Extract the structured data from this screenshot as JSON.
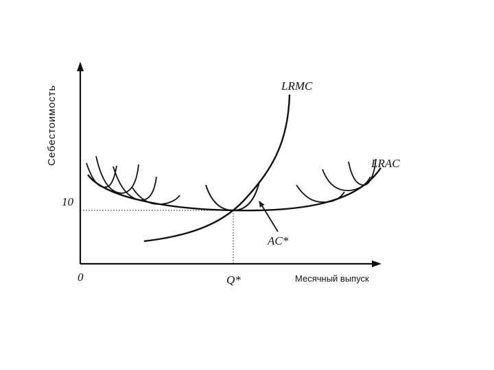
{
  "diagram": {
    "ylabel": "Себестоимость",
    "xlabel": "Месячный выпуск",
    "origin_label": "0",
    "y_tick_label": "10",
    "x_tick_label": "Q*",
    "curve_labels": {
      "lrmc": "LRMC",
      "lrac": "LRAC",
      "ac_star": "AC*"
    }
  }
}
